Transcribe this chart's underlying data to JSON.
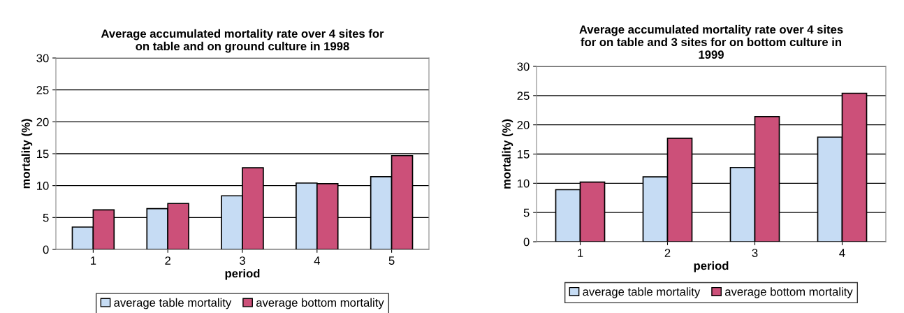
{
  "chart_data": [
    {
      "type": "bar",
      "title": "Average accumulated mortality rate over 4 sites for\non table and on ground culture in 1998",
      "xlabel": "period",
      "ylabel": "mortality (%)",
      "categories": [
        "1",
        "2",
        "3",
        "4",
        "5"
      ],
      "series": [
        {
          "name": "average table mortality",
          "color": "#c6dcf4",
          "values": [
            3.5,
            6.4,
            8.4,
            10.4,
            11.4
          ]
        },
        {
          "name": "average bottom mortality",
          "color": "#cc5079",
          "values": [
            6.2,
            7.2,
            12.8,
            10.3,
            14.7
          ]
        }
      ],
      "ylim": [
        0,
        30
      ],
      "yticks": [
        0,
        5,
        10,
        15,
        20,
        25,
        30
      ],
      "grid": "y",
      "legend": "bottom"
    },
    {
      "type": "bar",
      "title": "Average accumulated mortality rate over 4 sites\nfor on table and 3 sites for on bottom culture in\n1999",
      "xlabel": "period",
      "ylabel": "mortality (%)",
      "categories": [
        "1",
        "2",
        "3",
        "4"
      ],
      "series": [
        {
          "name": "average table mortality",
          "color": "#c6dcf4",
          "values": [
            8.9,
            11.1,
            12.7,
            17.9
          ]
        },
        {
          "name": "average bottom mortality",
          "color": "#cc5079",
          "values": [
            10.2,
            17.7,
            21.4,
            25.4
          ]
        }
      ],
      "ylim": [
        0,
        30
      ],
      "yticks": [
        0,
        5,
        10,
        15,
        20,
        25,
        30
      ],
      "grid": "y",
      "legend": "bottom"
    }
  ]
}
